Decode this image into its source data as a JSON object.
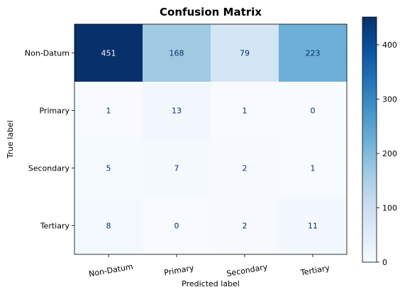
{
  "chart_data": {
    "type": "heatmap",
    "title": "Confusion Matrix",
    "xlabel": "Predicted label",
    "ylabel": "True label",
    "x_categories": [
      "Non-Datum",
      "Primary",
      "Secondary",
      "Tertiary"
    ],
    "y_categories": [
      "Non-Datum",
      "Primary",
      "Secondary",
      "Tertiary"
    ],
    "values": [
      [
        451,
        168,
        79,
        223
      ],
      [
        1,
        13,
        1,
        0
      ],
      [
        5,
        7,
        2,
        1
      ],
      [
        8,
        0,
        2,
        11
      ]
    ],
    "colormap": "Blues",
    "colorbar": {
      "range": [
        0,
        451
      ],
      "ticks": [
        0,
        100,
        200,
        300,
        400
      ]
    },
    "grid": false
  }
}
